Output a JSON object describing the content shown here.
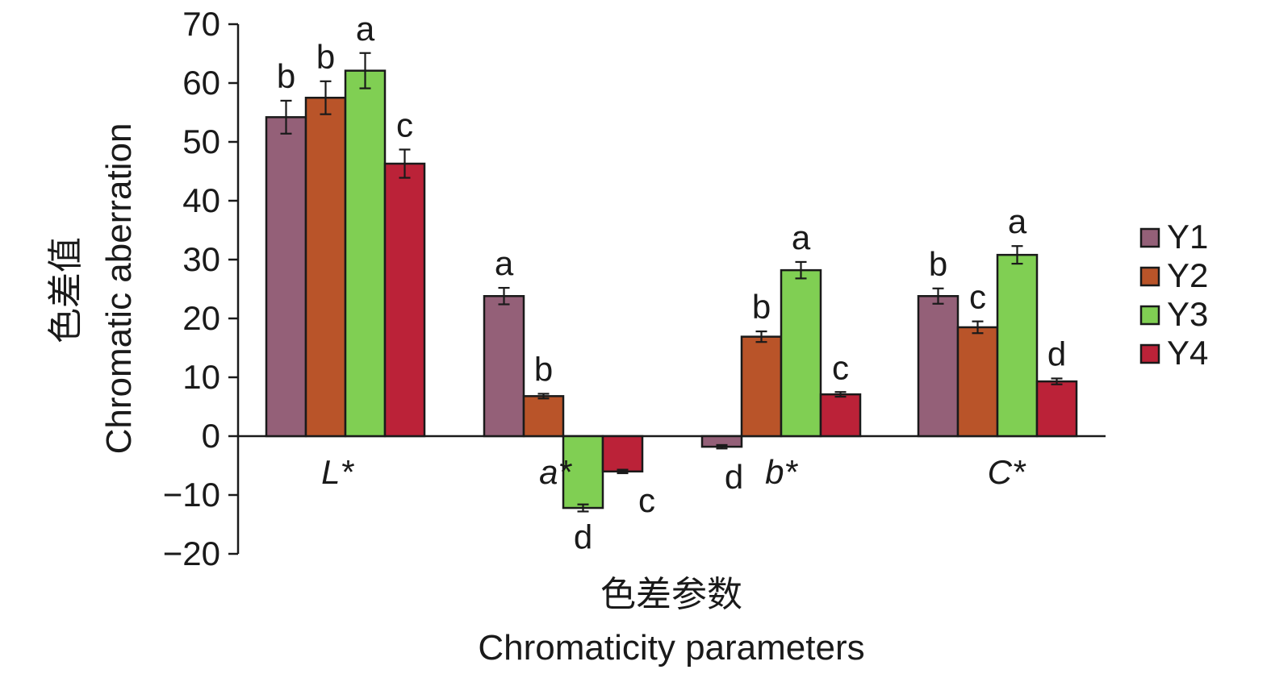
{
  "chart_data": {
    "type": "bar",
    "categories": [
      "L*",
      "a*",
      "b*",
      "C*"
    ],
    "series": [
      {
        "name": "Y1",
        "color": "#946078",
        "values": [
          54.2,
          23.8,
          -1.8,
          23.8
        ],
        "errors": [
          2.8,
          1.4,
          0.3,
          1.3
        ],
        "letters": [
          "b",
          "a",
          "d",
          "b"
        ]
      },
      {
        "name": "Y2",
        "color": "#b95429",
        "values": [
          57.5,
          6.8,
          16.9,
          18.5
        ],
        "errors": [
          2.8,
          0.4,
          0.9,
          1.0
        ],
        "letters": [
          "b",
          "b",
          "b",
          "c"
        ]
      },
      {
        "name": "Y3",
        "color": "#80cf53",
        "values": [
          62.1,
          -12.2,
          28.2,
          30.8
        ],
        "errors": [
          3.0,
          0.6,
          1.4,
          1.5
        ],
        "letters": [
          "a",
          "d",
          "a",
          "a"
        ]
      },
      {
        "name": "Y4",
        "color": "#bb2238",
        "values": [
          46.3,
          -6.0,
          7.1,
          9.3
        ],
        "errors": [
          2.4,
          0.3,
          0.4,
          0.5
        ],
        "letters": [
          "c",
          "c",
          "c",
          "d"
        ]
      }
    ],
    "title": "",
    "xlabel_cn": "色差参数",
    "xlabel": "Chromaticity parameters",
    "ylabel_cn": "色差值",
    "ylabel": "Chromatic aberration",
    "ylim": [
      -20,
      70
    ],
    "yticks": [
      -20,
      -10,
      0,
      10,
      20,
      30,
      40,
      50,
      60,
      70
    ],
    "ytick_labels": [
      "−20",
      "−10",
      "0",
      "10",
      "20",
      "30",
      "40",
      "50",
      "60",
      "70"
    ],
    "legend_position": "right",
    "grid": false
  }
}
